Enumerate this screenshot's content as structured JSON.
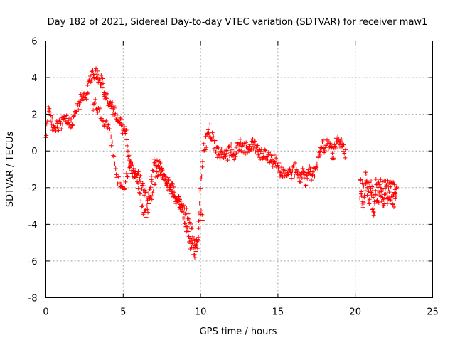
{
  "chart_data": {
    "type": "scatter",
    "title": "Day 182 of 2021, Sidereal Day-to-day VTEC variation (SDTVAR) for receiver maw1",
    "xlabel": "GPS time / hours",
    "ylabel": "SDTVAR / TECUs",
    "xlim": [
      0,
      25
    ],
    "ylim": [
      -8,
      6
    ],
    "xticks": [
      "0",
      "5",
      "10",
      "15",
      "20",
      "25"
    ],
    "yticks": [
      "6",
      "4",
      "2",
      "0",
      "-2",
      "-4",
      "-6",
      "-8"
    ],
    "grid": true,
    "marker": "+",
    "color": "#ff0000",
    "series": [
      {
        "name": "SDTVAR",
        "trend_x": [
          0.0,
          0.1,
          0.2,
          0.4,
          0.6,
          0.8,
          1.0,
          1.2,
          1.4,
          1.6,
          1.8,
          2.0,
          2.2,
          2.4,
          2.6,
          2.8,
          3.0,
          3.2,
          3.4,
          3.6,
          3.8,
          4.0,
          4.2,
          4.4,
          4.6,
          4.8,
          5.0,
          5.2,
          5.4,
          5.6,
          5.8,
          6.0,
          6.2,
          6.4,
          6.6,
          6.8,
          7.0,
          7.2,
          7.4,
          7.6,
          7.8,
          8.0,
          8.2,
          8.4,
          8.6,
          8.8,
          9.0,
          9.2,
          9.4,
          9.6,
          9.8,
          10.0,
          10.2,
          10.4,
          10.6,
          10.8,
          11.0,
          11.2,
          11.4,
          11.6,
          11.8,
          12.0,
          12.2,
          12.4,
          12.6,
          12.8,
          13.0,
          13.2,
          13.4,
          13.6,
          13.8,
          14.0,
          14.2,
          14.4,
          14.6,
          14.8,
          15.0,
          15.2,
          15.4,
          15.6,
          15.8,
          16.0,
          16.2,
          16.4,
          16.6,
          16.8,
          17.0,
          17.2,
          17.4,
          17.6,
          17.8,
          18.0,
          18.2,
          18.4,
          18.6,
          18.8,
          19.0,
          19.2,
          19.4
        ],
        "trend_y": [
          0.8,
          1.8,
          2.3,
          1.5,
          1.3,
          1.4,
          1.5,
          1.6,
          1.7,
          1.4,
          1.8,
          2.2,
          2.6,
          3.2,
          3.0,
          3.6,
          4.4,
          4.2,
          4.1,
          3.8,
          3.2,
          2.8,
          2.4,
          2.2,
          2.0,
          1.6,
          1.2,
          0.8,
          -0.6,
          -1.2,
          -1.5,
          -1.3,
          -1.8,
          -2.4,
          -2.8,
          -1.8,
          -0.8,
          -0.6,
          -0.9,
          -1.4,
          -1.7,
          -1.9,
          -2.1,
          -2.5,
          -2.8,
          -3.2,
          -3.8,
          -4.6,
          -5.2,
          -5.6,
          -5.2,
          -1.8,
          0.2,
          0.6,
          1.2,
          0.6,
          0.1,
          -0.2,
          0.0,
          -0.4,
          -0.1,
          0.1,
          -0.2,
          0.2,
          0.3,
          0.1,
          0.2,
          0.4,
          0.3,
          0.1,
          -0.1,
          -0.3,
          -0.1,
          -0.2,
          -0.6,
          -0.3,
          -0.9,
          -1.1,
          -1.4,
          -1.0,
          -1.3,
          -1.1,
          -0.9,
          -1.5,
          -1.3,
          -1.6,
          -1.1,
          -1.4,
          -1.0,
          -0.6,
          0.4,
          0.2,
          0.6,
          0.1,
          -0.2,
          0.7,
          0.5,
          0.2,
          -0.2
        ],
        "lower_trend_x": [
          3.0,
          3.2,
          3.4,
          3.6,
          3.8,
          4.0,
          4.2,
          4.4,
          4.6,
          4.8,
          5.0,
          5.2,
          5.4,
          5.6,
          5.8,
          6.0,
          6.2,
          6.4,
          6.6,
          6.8,
          7.0,
          7.2,
          7.4,
          7.6,
          7.8,
          8.0,
          8.2,
          8.4,
          8.6,
          8.8,
          9.0,
          9.2,
          9.4,
          9.6,
          9.8,
          10.0,
          10.2
        ],
        "lower_trend_y": [
          2.4,
          2.6,
          2.2,
          2.0,
          1.6,
          1.4,
          0.9,
          -0.4,
          -1.4,
          -1.9,
          -2.1,
          -1.4,
          -1.0,
          -0.9,
          -1.3,
          -1.8,
          -2.9,
          -3.5,
          -3.2,
          -2.6,
          -1.7,
          -1.3,
          -1.1,
          -1.4,
          -1.7,
          -2.0,
          -2.4,
          -2.6,
          -2.8,
          -3.0,
          -3.2,
          -3.6,
          -4.2,
          -4.9,
          -5.1,
          -3.4,
          -3.7
        ],
        "cluster_20_23_x": [
          20.3,
          20.5,
          20.7,
          20.9,
          21.0,
          21.1,
          21.2,
          21.3,
          21.6,
          21.8,
          22.1,
          22.3,
          22.5,
          22.7
        ],
        "cluster_20_23_y": [
          -2.0,
          -2.5,
          -1.6,
          -2.3,
          -1.9,
          -2.6,
          -3.2,
          -2.2,
          -2.1,
          -2.3,
          -2.2,
          -2.0,
          -2.4,
          -1.9
        ]
      }
    ]
  }
}
